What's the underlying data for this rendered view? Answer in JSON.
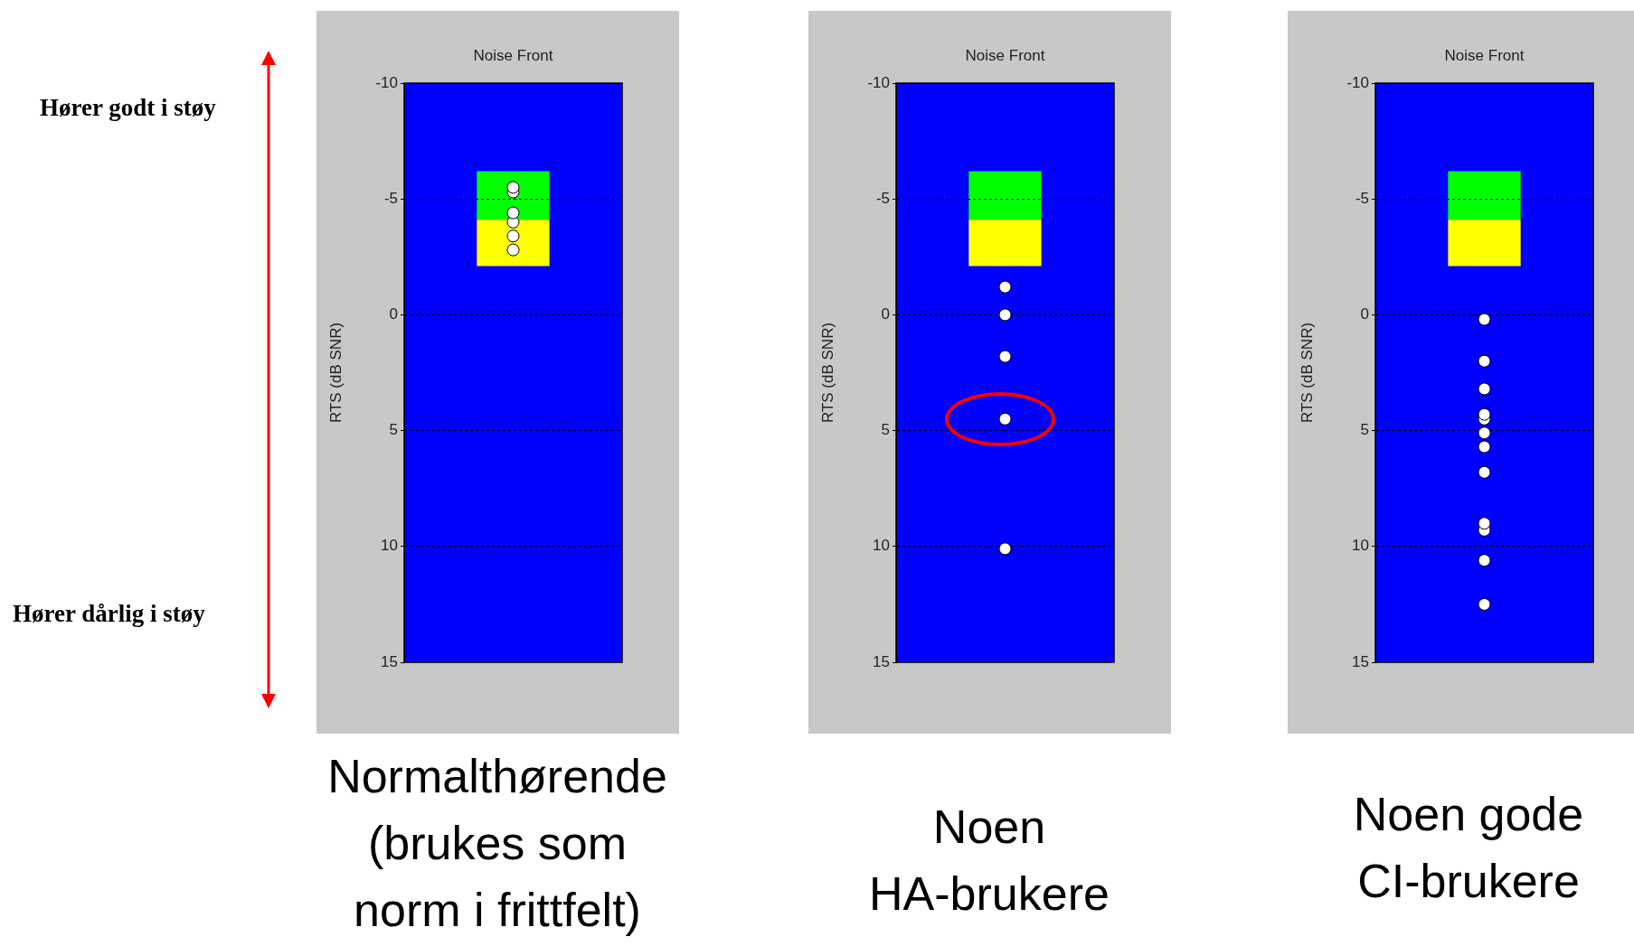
{
  "chart_data": [
    {
      "type": "other",
      "annotations": [
        "Hører godt i støy",
        "Hører dårlig i støy"
      ]
    },
    {
      "type": "scatter",
      "title": "Noise Front",
      "ylabel": "RTS (dB SNR)",
      "categories": [
        null
      ],
      "ylim": [
        15,
        -10
      ],
      "yticks": [
        -10,
        -5,
        0,
        5,
        10,
        15
      ],
      "grid": "y",
      "marker": "circle",
      "legend": false,
      "tick_labels": "y",
      "series": [
        {
          "color": "#ffffff",
          "values": [
            -5.5
          ]
        },
        {
          "color": "#ffffff",
          "values": [
            -5.3
          ]
        },
        {
          "color": "#ffffff",
          "values": [
            -4.4
          ]
        },
        {
          "color": "#ffffff",
          "values": [
            -4.0
          ]
        },
        {
          "color": "#ffffff",
          "values": [
            -3.4
          ]
        },
        {
          "color": "#ffffff",
          "values": [
            -2.8
          ]
        }
      ],
      "bands": [
        {
          "axis": "y",
          "from": -6.2,
          "to": -4.1,
          "color": "#00ff00"
        },
        {
          "axis": "y",
          "from": -4.1,
          "to": -2.1,
          "color": "#ffff00"
        }
      ],
      "annotations": [
        "Normalthørende (brukes som norm i frittfelt)"
      ]
    },
    {
      "type": "scatter",
      "title": "Noise Front",
      "ylabel": "RTS (dB SNR)",
      "categories": [
        null
      ],
      "ylim": [
        15,
        -10
      ],
      "yticks": [
        -10,
        -5,
        0,
        5,
        10,
        15
      ],
      "grid": "y",
      "marker": "circle",
      "legend": false,
      "tick_labels": "y",
      "series": [
        {
          "color": "#ffffff",
          "values": [
            -1.2
          ]
        },
        {
          "color": "#ffffff",
          "values": [
            0.0
          ]
        },
        {
          "color": "#ffffff",
          "values": [
            1.8
          ]
        },
        {
          "color": "#ffffff",
          "values": [
            4.5
          ]
        },
        {
          "color": "#ffffff",
          "values": [
            10.1
          ]
        }
      ],
      "bands": [
        {
          "axis": "y",
          "from": -6.2,
          "to": -4.1,
          "color": "#00ff00"
        },
        {
          "axis": "y",
          "from": -4.1,
          "to": -2.1,
          "color": "#ffff00"
        }
      ],
      "annotations": [
        "Noen HA-brukere"
      ]
    },
    {
      "type": "scatter",
      "title": "Noise Front",
      "ylabel": "RTS (dB SNR)",
      "categories": [
        null
      ],
      "ylim": [
        15,
        -10
      ],
      "yticks": [
        -10,
        -5,
        0,
        5,
        10,
        15
      ],
      "grid": "y",
      "marker": "circle",
      "legend": false,
      "tick_labels": "y",
      "series": [
        {
          "color": "#ffffff",
          "values": [
            0.2
          ]
        },
        {
          "color": "#ffffff",
          "values": [
            2.0
          ]
        },
        {
          "color": "#ffffff",
          "values": [
            3.2
          ]
        },
        {
          "color": "#ffffff",
          "values": [
            4.3
          ]
        },
        {
          "color": "#ffffff",
          "values": [
            4.5
          ]
        },
        {
          "color": "#ffffff",
          "values": [
            5.1
          ]
        },
        {
          "color": "#ffffff",
          "values": [
            5.7
          ]
        },
        {
          "color": "#ffffff",
          "values": [
            6.8
          ]
        },
        {
          "color": "#ffffff",
          "values": [
            9.0
          ]
        },
        {
          "color": "#ffffff",
          "values": [
            9.3
          ]
        },
        {
          "color": "#ffffff",
          "values": [
            10.6
          ]
        },
        {
          "color": "#ffffff",
          "values": [
            12.5
          ]
        }
      ],
      "bands": [
        {
          "axis": "y",
          "from": -6.2,
          "to": -4.1,
          "color": "#00ff00"
        },
        {
          "axis": "y",
          "from": -4.1,
          "to": -2.1,
          "color": "#ffff00"
        }
      ],
      "annotations": [
        "Noen gode CI-brukere"
      ]
    }
  ]
}
